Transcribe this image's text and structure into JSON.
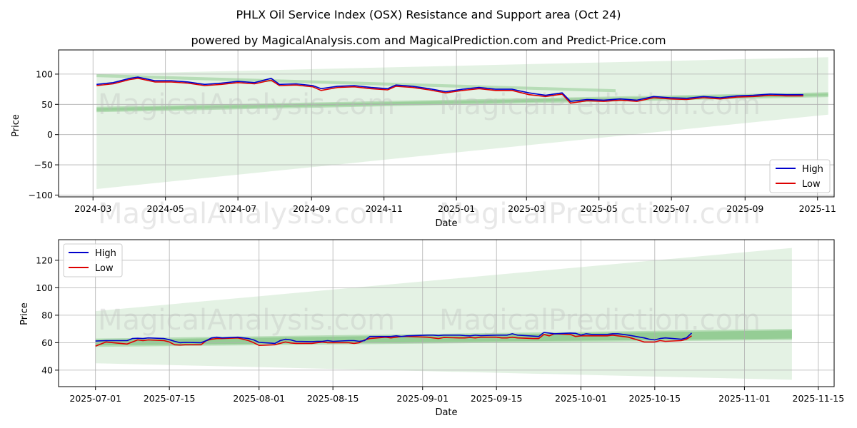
{
  "title": "PHLX Oil Service Index (OSX) Resistance and Support area (Oct 24)",
  "subtitle": "powered by MagicalAnalysis.com and MagicalPrediction.com and Predict-Price.com",
  "watermarks": [
    "MagicalAnalysis.com",
    "MagicalPrediction.com"
  ],
  "colors": {
    "high": "#0000cc",
    "low": "#dd0000",
    "band": "#2e9e2e"
  },
  "chart_data": [
    {
      "type": "line",
      "xlabel": "Date",
      "ylabel": "Price",
      "xlim": [
        "2024-02-01",
        "2025-11-15"
      ],
      "ylim": [
        -103,
        140
      ],
      "xticks": [
        "2024-03",
        "2024-05",
        "2024-07",
        "2024-09",
        "2024-11",
        "2025-01",
        "2025-03",
        "2025-05",
        "2025-07",
        "2025-09",
        "2025-11"
      ],
      "yticks": [
        -100,
        -50,
        0,
        50,
        100
      ],
      "legend": {
        "position": "lower-right",
        "entries": [
          "High",
          "Low"
        ]
      },
      "series": [
        {
          "name": "High",
          "x": [
            "2024-03-04",
            "2024-03-18",
            "2024-04-01",
            "2024-04-08",
            "2024-04-22",
            "2024-05-06",
            "2024-05-20",
            "2024-06-03",
            "2024-06-17",
            "2024-07-01",
            "2024-07-15",
            "2024-07-29",
            "2024-08-05",
            "2024-08-19",
            "2024-09-02",
            "2024-09-09",
            "2024-09-23",
            "2024-10-07",
            "2024-10-21",
            "2024-11-04",
            "2024-11-11",
            "2024-11-25",
            "2024-12-09",
            "2024-12-23",
            "2025-01-06",
            "2025-01-20",
            "2025-02-03",
            "2025-02-17",
            "2025-03-03",
            "2025-03-17",
            "2025-03-31",
            "2025-04-07",
            "2025-04-21",
            "2025-05-05",
            "2025-05-19",
            "2025-06-02",
            "2025-06-16",
            "2025-06-30",
            "2025-07-14",
            "2025-07-28",
            "2025-08-11",
            "2025-08-25",
            "2025-09-08",
            "2025-09-22",
            "2025-10-06",
            "2025-10-20"
          ],
          "values": [
            83,
            86,
            93,
            95,
            89,
            89,
            87,
            83,
            85,
            88,
            86,
            93,
            83,
            84,
            81,
            76,
            80,
            81,
            78,
            76,
            82,
            80,
            76,
            71,
            75,
            78,
            75,
            75,
            69,
            65,
            69,
            55,
            58,
            57,
            59,
            57,
            63,
            61,
            60,
            63,
            61,
            64,
            65,
            67,
            66,
            66
          ]
        },
        {
          "name": "Low",
          "x": [
            "2024-03-04",
            "2024-03-18",
            "2024-04-01",
            "2024-04-08",
            "2024-04-22",
            "2024-05-06",
            "2024-05-20",
            "2024-06-03",
            "2024-06-17",
            "2024-07-01",
            "2024-07-15",
            "2024-07-29",
            "2024-08-05",
            "2024-08-19",
            "2024-09-02",
            "2024-09-09",
            "2024-09-23",
            "2024-10-07",
            "2024-10-21",
            "2024-11-04",
            "2024-11-11",
            "2024-11-25",
            "2024-12-09",
            "2024-12-23",
            "2025-01-06",
            "2025-01-20",
            "2025-02-03",
            "2025-02-17",
            "2025-03-03",
            "2025-03-17",
            "2025-03-31",
            "2025-04-07",
            "2025-04-21",
            "2025-05-05",
            "2025-05-19",
            "2025-06-02",
            "2025-06-16",
            "2025-06-30",
            "2025-07-14",
            "2025-07-28",
            "2025-08-11",
            "2025-08-25",
            "2025-09-08",
            "2025-09-22",
            "2025-10-06",
            "2025-10-20"
          ],
          "values": [
            81,
            84,
            91,
            93,
            87,
            87,
            85,
            81,
            83,
            86,
            84,
            90,
            81,
            82,
            79,
            73,
            78,
            79,
            76,
            74,
            80,
            78,
            74,
            69,
            73,
            76,
            73,
            73,
            66,
            63,
            67,
            52,
            56,
            55,
            57,
            55,
            61,
            59,
            58,
            61,
            59,
            62,
            63,
            65,
            64,
            64
          ]
        }
      ],
      "bands": [
        {
          "name": "outer",
          "x": [
            "2024-03-04",
            "2025-11-10"
          ],
          "upper": [
            100,
            128
          ],
          "lower": [
            -90,
            33
          ]
        },
        {
          "name": "upper-wedge",
          "x": [
            "2024-03-04",
            "2025-05-15"
          ],
          "upper": [
            100,
            75
          ],
          "lower": [
            95,
            70
          ]
        },
        {
          "name": "lower-wedge",
          "x": [
            "2024-03-04",
            "2025-11-10"
          ],
          "upper": [
            46,
            70
          ],
          "lower": [
            37,
            62
          ]
        },
        {
          "name": "lower-wedge-inner",
          "x": [
            "2024-03-04",
            "2025-11-10"
          ],
          "upper": [
            44,
            68
          ],
          "lower": [
            39,
            64
          ]
        }
      ]
    },
    {
      "type": "line",
      "xlabel": "Date",
      "ylabel": "Price",
      "xlim": [
        "2025-06-24",
        "2025-11-18"
      ],
      "ylim": [
        28,
        135
      ],
      "xticks": [
        "2025-07-01",
        "2025-07-15",
        "2025-08-01",
        "2025-08-15",
        "2025-09-01",
        "2025-09-15",
        "2025-10-01",
        "2025-10-15",
        "2025-11-01",
        "2025-11-15"
      ],
      "yticks": [
        40,
        60,
        80,
        100,
        120
      ],
      "legend": {
        "position": "upper-left",
        "entries": [
          "High",
          "Low"
        ]
      },
      "series": [
        {
          "name": "High",
          "x": [
            "2025-07-01",
            "2025-07-03",
            "2025-07-07",
            "2025-07-08",
            "2025-07-09",
            "2025-07-10",
            "2025-07-11",
            "2025-07-14",
            "2025-07-15",
            "2025-07-16",
            "2025-07-17",
            "2025-07-18",
            "2025-07-21",
            "2025-07-22",
            "2025-07-23",
            "2025-07-24",
            "2025-07-25",
            "2025-07-28",
            "2025-07-29",
            "2025-07-30",
            "2025-07-31",
            "2025-08-01",
            "2025-08-04",
            "2025-08-05",
            "2025-08-06",
            "2025-08-07",
            "2025-08-08",
            "2025-08-11",
            "2025-08-12",
            "2025-08-13",
            "2025-08-14",
            "2025-08-15",
            "2025-08-18",
            "2025-08-19",
            "2025-08-20",
            "2025-08-21",
            "2025-08-22",
            "2025-08-25",
            "2025-08-26",
            "2025-08-27",
            "2025-08-28",
            "2025-08-29",
            "2025-09-02",
            "2025-09-03",
            "2025-09-04",
            "2025-09-05",
            "2025-09-08",
            "2025-09-09",
            "2025-09-10",
            "2025-09-11",
            "2025-09-12",
            "2025-09-15",
            "2025-09-16",
            "2025-09-17",
            "2025-09-18",
            "2025-09-19",
            "2025-09-22",
            "2025-09-23",
            "2025-09-24",
            "2025-09-25",
            "2025-09-26",
            "2025-09-29",
            "2025-09-30",
            "2025-10-01",
            "2025-10-02",
            "2025-10-03",
            "2025-10-06",
            "2025-10-07",
            "2025-10-08",
            "2025-10-09",
            "2025-10-10",
            "2025-10-13",
            "2025-10-14",
            "2025-10-15",
            "2025-10-16",
            "2025-10-17",
            "2025-10-20",
            "2025-10-21",
            "2025-10-22"
          ],
          "values": [
            61.2,
            61.5,
            61.5,
            63.0,
            63.2,
            63.0,
            63.5,
            63.0,
            62.2,
            61.0,
            60.0,
            60.2,
            60.0,
            61.5,
            63.5,
            64.0,
            63.5,
            64.0,
            63.5,
            63.0,
            62.0,
            60.2,
            59.5,
            61.5,
            62.5,
            62.0,
            61.0,
            60.8,
            61.0,
            61.0,
            61.5,
            61.0,
            61.5,
            61.5,
            61.0,
            61.5,
            64.5,
            64.5,
            64.5,
            65.0,
            64.5,
            65.0,
            65.5,
            65.5,
            65.2,
            65.5,
            65.5,
            65.2,
            65.0,
            65.5,
            65.2,
            65.5,
            65.5,
            65.5,
            66.5,
            65.5,
            64.8,
            64.5,
            67.5,
            67.0,
            66.5,
            67.0,
            66.8,
            65.5,
            66.5,
            66.0,
            66.0,
            66.5,
            66.5,
            66.0,
            65.5,
            63.5,
            62.5,
            62.0,
            63.0,
            63.5,
            62.5,
            63.5,
            67.0
          ]
        },
        {
          "name": "Low",
          "x": [
            "2025-07-01",
            "2025-07-03",
            "2025-07-07",
            "2025-07-08",
            "2025-07-09",
            "2025-07-10",
            "2025-07-11",
            "2025-07-14",
            "2025-07-15",
            "2025-07-16",
            "2025-07-17",
            "2025-07-18",
            "2025-07-21",
            "2025-07-22",
            "2025-07-23",
            "2025-07-24",
            "2025-07-25",
            "2025-07-28",
            "2025-07-29",
            "2025-07-30",
            "2025-07-31",
            "2025-08-01",
            "2025-08-04",
            "2025-08-05",
            "2025-08-06",
            "2025-08-07",
            "2025-08-08",
            "2025-08-11",
            "2025-08-12",
            "2025-08-13",
            "2025-08-14",
            "2025-08-15",
            "2025-08-18",
            "2025-08-19",
            "2025-08-20",
            "2025-08-21",
            "2025-08-22",
            "2025-08-25",
            "2025-08-26",
            "2025-08-27",
            "2025-08-28",
            "2025-08-29",
            "2025-09-02",
            "2025-09-03",
            "2025-09-04",
            "2025-09-05",
            "2025-09-08",
            "2025-09-09",
            "2025-09-10",
            "2025-09-11",
            "2025-09-12",
            "2025-09-15",
            "2025-09-16",
            "2025-09-17",
            "2025-09-18",
            "2025-09-19",
            "2025-09-22",
            "2025-09-23",
            "2025-09-24",
            "2025-09-25",
            "2025-09-26",
            "2025-09-29",
            "2025-09-30",
            "2025-10-01",
            "2025-10-02",
            "2025-10-03",
            "2025-10-06",
            "2025-10-07",
            "2025-10-08",
            "2025-10-09",
            "2025-10-10",
            "2025-10-13",
            "2025-10-14",
            "2025-10-15",
            "2025-10-16",
            "2025-10-17",
            "2025-10-20",
            "2025-10-21",
            "2025-10-22"
          ],
          "values": [
            57.5,
            60.5,
            59.0,
            60.5,
            62.0,
            61.5,
            62.0,
            61.5,
            60.5,
            58.5,
            58.3,
            58.5,
            58.5,
            61.5,
            62.5,
            63.0,
            63.0,
            63.5,
            62.5,
            61.5,
            60.0,
            58.0,
            58.5,
            59.5,
            60.5,
            59.8,
            59.5,
            59.5,
            60.0,
            60.5,
            60.0,
            60.0,
            60.0,
            59.5,
            60.0,
            62.0,
            63.0,
            64.0,
            63.5,
            64.0,
            64.5,
            64.5,
            64.0,
            63.5,
            63.0,
            63.8,
            63.5,
            63.5,
            63.8,
            63.5,
            64.0,
            64.0,
            63.5,
            63.5,
            64.0,
            63.5,
            63.0,
            63.0,
            66.0,
            65.0,
            66.5,
            66.0,
            64.5,
            65.0,
            65.0,
            65.0,
            65.0,
            65.5,
            65.0,
            64.5,
            64.0,
            60.5,
            60.5,
            60.5,
            61.5,
            61.0,
            61.5,
            62.5,
            65.0
          ]
        }
      ],
      "bands": [
        {
          "name": "outer",
          "x": [
            "2025-07-01",
            "2025-11-10"
          ],
          "upper": [
            83,
            129
          ],
          "lower": [
            45,
            33
          ]
        },
        {
          "name": "main",
          "x": [
            "2025-07-01",
            "2025-11-10"
          ],
          "upper": [
            63,
            70
          ],
          "lower": [
            57,
            62
          ]
        },
        {
          "name": "core",
          "x": [
            "2025-07-01",
            "2025-11-10"
          ],
          "upper": [
            62,
            69
          ],
          "lower": [
            58,
            63
          ]
        }
      ]
    }
  ]
}
